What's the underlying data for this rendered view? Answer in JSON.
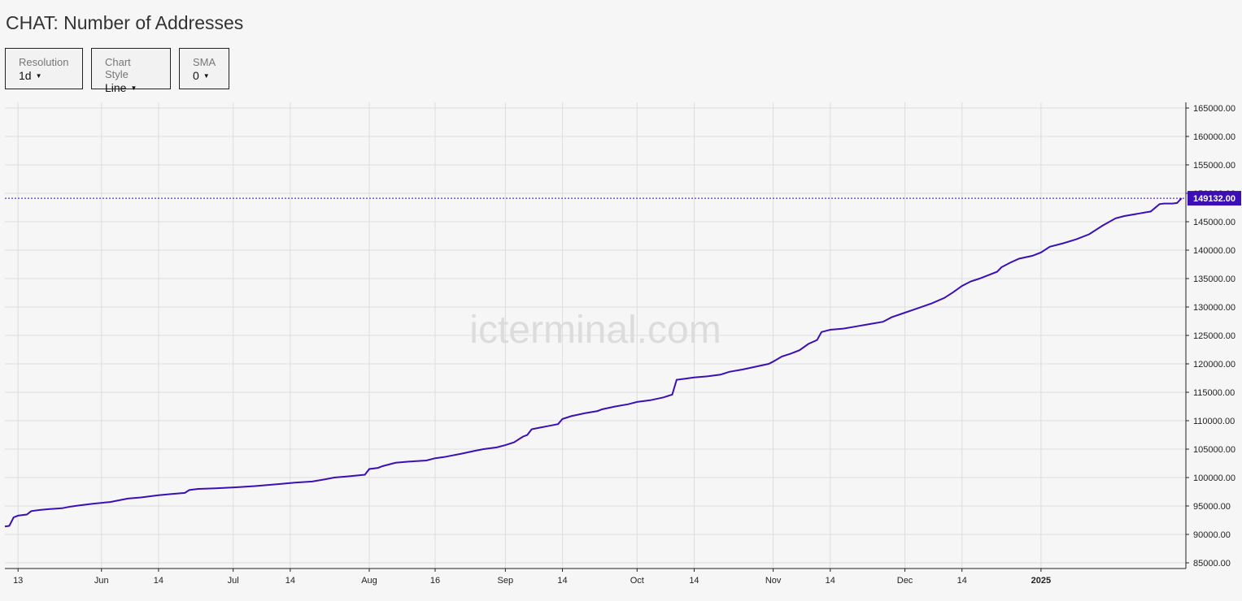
{
  "title": "CHAT: Number of Addresses",
  "controls": {
    "resolution": {
      "label": "Resolution",
      "value": "1d"
    },
    "chart_style": {
      "label": "Chart Style",
      "value": "Line"
    },
    "sma": {
      "label": "SMA",
      "value": "0"
    }
  },
  "watermark": "icterminal.com",
  "colors": {
    "line": "#3b0fb5",
    "last_value_bg": "#3b0fb5",
    "grid": "#dddddd",
    "background": "#f6f6f6"
  },
  "chart_data": {
    "type": "line",
    "title": "CHAT: Number of Addresses",
    "xlabel": "",
    "ylabel": "",
    "grid": true,
    "ylim": [
      84000,
      166000
    ],
    "yticks": [
      "85000.00",
      "90000.00",
      "95000.00",
      "100000.00",
      "105000.00",
      "110000.00",
      "115000.00",
      "120000.00",
      "125000.00",
      "130000.00",
      "135000.00",
      "140000.00",
      "145000.00",
      "150000.00",
      "155000.00",
      "160000.00",
      "165000.00"
    ],
    "xticks": [
      {
        "label": "13",
        "date": "2024-05-13"
      },
      {
        "label": "Jun",
        "date": "2024-06-01"
      },
      {
        "label": "14",
        "date": "2024-06-14"
      },
      {
        "label": "Jul",
        "date": "2024-07-01"
      },
      {
        "label": "14",
        "date": "2024-07-14"
      },
      {
        "label": "Aug",
        "date": "2024-08-01"
      },
      {
        "label": "16",
        "date": "2024-08-16"
      },
      {
        "label": "Sep",
        "date": "2024-09-01"
      },
      {
        "label": "14",
        "date": "2024-09-14"
      },
      {
        "label": "Oct",
        "date": "2024-10-01"
      },
      {
        "label": "14",
        "date": "2024-10-14"
      },
      {
        "label": "Nov",
        "date": "2024-11-01"
      },
      {
        "label": "14",
        "date": "2024-11-14"
      },
      {
        "label": "Dec",
        "date": "2024-12-01"
      },
      {
        "label": "14",
        "date": "2024-12-14"
      },
      {
        "label": "2025",
        "date": "2025-01-01",
        "bold": true
      }
    ],
    "last_value": 149132,
    "last_value_label": "149132.00",
    "series": [
      {
        "points": [
          [
            "2024-05-10",
            91400
          ],
          [
            "2024-05-11",
            91500
          ],
          [
            "2024-05-12",
            93000
          ],
          [
            "2024-05-13",
            93300
          ],
          [
            "2024-05-15",
            93500
          ],
          [
            "2024-05-16",
            94100
          ],
          [
            "2024-05-18",
            94300
          ],
          [
            "2024-05-20",
            94450
          ],
          [
            "2024-05-23",
            94600
          ],
          [
            "2024-05-25",
            94900
          ],
          [
            "2024-05-27",
            95100
          ],
          [
            "2024-05-30",
            95400
          ],
          [
            "2024-06-03",
            95700
          ],
          [
            "2024-06-05",
            96000
          ],
          [
            "2024-06-07",
            96300
          ],
          [
            "2024-06-10",
            96500
          ],
          [
            "2024-06-14",
            96900
          ],
          [
            "2024-06-17",
            97100
          ],
          [
            "2024-06-20",
            97300
          ],
          [
            "2024-06-21",
            97800
          ],
          [
            "2024-06-23",
            98000
          ],
          [
            "2024-06-27",
            98100
          ],
          [
            "2024-07-02",
            98300
          ],
          [
            "2024-07-06",
            98500
          ],
          [
            "2024-07-09",
            98700
          ],
          [
            "2024-07-12",
            98900
          ],
          [
            "2024-07-15",
            99100
          ],
          [
            "2024-07-19",
            99300
          ],
          [
            "2024-07-22",
            99700
          ],
          [
            "2024-07-24",
            100000
          ],
          [
            "2024-07-27",
            100200
          ],
          [
            "2024-07-31",
            100500
          ],
          [
            "2024-08-01",
            101500
          ],
          [
            "2024-08-03",
            101700
          ],
          [
            "2024-08-04",
            102000
          ],
          [
            "2024-08-07",
            102600
          ],
          [
            "2024-08-10",
            102800
          ],
          [
            "2024-08-14",
            103000
          ],
          [
            "2024-08-16",
            103400
          ],
          [
            "2024-08-18",
            103600
          ],
          [
            "2024-08-20",
            103900
          ],
          [
            "2024-08-22",
            104200
          ],
          [
            "2024-08-25",
            104700
          ],
          [
            "2024-08-27",
            105000
          ],
          [
            "2024-08-30",
            105300
          ],
          [
            "2024-09-01",
            105700
          ],
          [
            "2024-09-03",
            106200
          ],
          [
            "2024-09-05",
            107200
          ],
          [
            "2024-09-06",
            107500
          ],
          [
            "2024-09-07",
            108500
          ],
          [
            "2024-09-09",
            108800
          ],
          [
            "2024-09-11",
            109100
          ],
          [
            "2024-09-13",
            109400
          ],
          [
            "2024-09-14",
            110300
          ],
          [
            "2024-09-16",
            110800
          ],
          [
            "2024-09-19",
            111300
          ],
          [
            "2024-09-22",
            111700
          ],
          [
            "2024-09-23",
            112000
          ],
          [
            "2024-09-26",
            112500
          ],
          [
            "2024-09-29",
            112900
          ],
          [
            "2024-10-01",
            113300
          ],
          [
            "2024-10-04",
            113600
          ],
          [
            "2024-10-07",
            114100
          ],
          [
            "2024-10-09",
            114600
          ],
          [
            "2024-10-10",
            117200
          ],
          [
            "2024-10-12",
            117400
          ],
          [
            "2024-10-14",
            117600
          ],
          [
            "2024-10-17",
            117800
          ],
          [
            "2024-10-20",
            118100
          ],
          [
            "2024-10-22",
            118600
          ],
          [
            "2024-10-25",
            119000
          ],
          [
            "2024-10-28",
            119500
          ],
          [
            "2024-10-31",
            120000
          ],
          [
            "2024-11-01",
            120400
          ],
          [
            "2024-11-03",
            121300
          ],
          [
            "2024-11-05",
            121800
          ],
          [
            "2024-11-07",
            122400
          ],
          [
            "2024-11-09",
            123500
          ],
          [
            "2024-11-11",
            124200
          ],
          [
            "2024-11-12",
            125600
          ],
          [
            "2024-11-14",
            126000
          ],
          [
            "2024-11-17",
            126200
          ],
          [
            "2024-11-20",
            126600
          ],
          [
            "2024-11-23",
            127000
          ],
          [
            "2024-11-26",
            127400
          ],
          [
            "2024-11-28",
            128200
          ],
          [
            "2024-12-01",
            129000
          ],
          [
            "2024-12-04",
            129800
          ],
          [
            "2024-12-07",
            130600
          ],
          [
            "2024-12-10",
            131600
          ],
          [
            "2024-12-12",
            132600
          ],
          [
            "2024-12-14",
            133700
          ],
          [
            "2024-12-16",
            134500
          ],
          [
            "2024-12-18",
            135000
          ],
          [
            "2024-12-20",
            135600
          ],
          [
            "2024-12-22",
            136200
          ],
          [
            "2024-12-23",
            137000
          ],
          [
            "2024-12-25",
            137800
          ],
          [
            "2024-12-27",
            138500
          ],
          [
            "2024-12-30",
            139000
          ],
          [
            "2025-01-01",
            139600
          ],
          [
            "2025-01-03",
            140600
          ],
          [
            "2025-01-06",
            141200
          ],
          [
            "2025-01-09",
            141900
          ],
          [
            "2025-01-12",
            142800
          ],
          [
            "2025-01-15",
            144300
          ],
          [
            "2025-01-18",
            145600
          ],
          [
            "2025-01-20",
            146000
          ],
          [
            "2025-01-23",
            146400
          ],
          [
            "2025-01-26",
            146800
          ],
          [
            "2025-01-28",
            148100
          ],
          [
            "2025-01-29",
            148200
          ],
          [
            "2025-01-31",
            148200
          ],
          [
            "2025-02-01",
            148300
          ],
          [
            "2025-02-02",
            149132
          ]
        ]
      }
    ]
  }
}
